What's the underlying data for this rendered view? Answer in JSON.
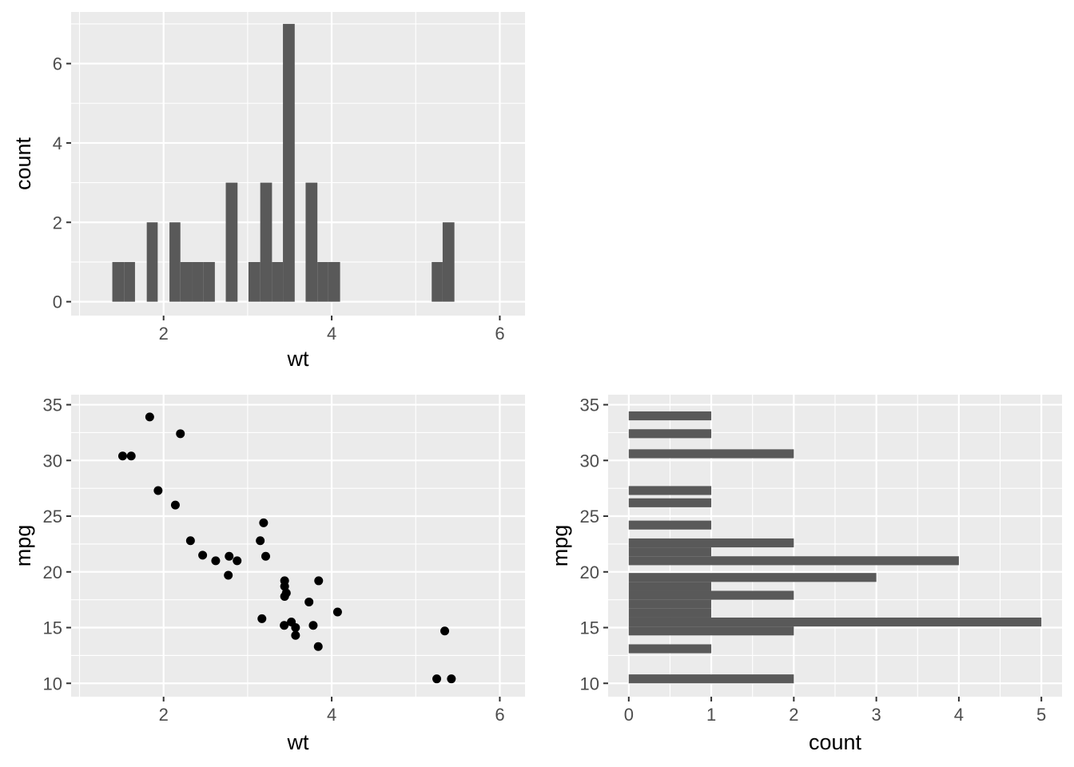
{
  "chart_data": [
    {
      "id": "hist_wt",
      "type": "bar",
      "title": "",
      "xlabel": "wt",
      "ylabel": "count",
      "xlim": [
        0.9,
        6.3
      ],
      "ylim": [
        -0.35,
        7.3
      ],
      "x_ticks": [
        2,
        4,
        6
      ],
      "y_ticks": [
        0,
        2,
        4,
        6
      ],
      "grid": true,
      "bins": [
        {
          "x0": 1.39,
          "x1": 1.53,
          "count": 1
        },
        {
          "x0": 1.53,
          "x1": 1.66,
          "count": 1
        },
        {
          "x0": 1.8,
          "x1": 1.93,
          "count": 2
        },
        {
          "x0": 2.07,
          "x1": 2.2,
          "count": 2
        },
        {
          "x0": 2.2,
          "x1": 2.34,
          "count": 1
        },
        {
          "x0": 2.34,
          "x1": 2.47,
          "count": 1
        },
        {
          "x0": 2.47,
          "x1": 2.61,
          "count": 1
        },
        {
          "x0": 2.74,
          "x1": 2.88,
          "count": 3
        },
        {
          "x0": 3.01,
          "x1": 3.15,
          "count": 1
        },
        {
          "x0": 3.15,
          "x1": 3.29,
          "count": 3
        },
        {
          "x0": 3.29,
          "x1": 3.42,
          "count": 1
        },
        {
          "x0": 3.42,
          "x1": 3.56,
          "count": 7
        },
        {
          "x0": 3.69,
          "x1": 3.83,
          "count": 3
        },
        {
          "x0": 3.83,
          "x1": 3.96,
          "count": 1
        },
        {
          "x0": 3.96,
          "x1": 4.1,
          "count": 1
        },
        {
          "x0": 5.19,
          "x1": 5.32,
          "count": 1
        },
        {
          "x0": 5.32,
          "x1": 5.46,
          "count": 2
        }
      ]
    },
    {
      "id": "scatter_wt_mpg",
      "type": "scatter",
      "title": "",
      "xlabel": "wt",
      "ylabel": "mpg",
      "xlim": [
        0.9,
        6.3
      ],
      "ylim": [
        8.8,
        35.9
      ],
      "x_ticks": [
        2,
        4,
        6
      ],
      "y_ticks": [
        10,
        15,
        20,
        25,
        30,
        35
      ],
      "grid": true,
      "points": [
        [
          2.62,
          21.0
        ],
        [
          2.875,
          21.0
        ],
        [
          2.32,
          22.8
        ],
        [
          3.215,
          21.4
        ],
        [
          3.44,
          18.7
        ],
        [
          3.46,
          18.1
        ],
        [
          3.57,
          14.3
        ],
        [
          3.19,
          24.4
        ],
        [
          3.15,
          22.8
        ],
        [
          3.44,
          19.2
        ],
        [
          3.44,
          17.8
        ],
        [
          4.07,
          16.4
        ],
        [
          3.73,
          17.3
        ],
        [
          3.78,
          15.2
        ],
        [
          5.25,
          10.4
        ],
        [
          5.424,
          10.4
        ],
        [
          5.345,
          14.7
        ],
        [
          2.2,
          32.4
        ],
        [
          1.615,
          30.4
        ],
        [
          1.835,
          33.9
        ],
        [
          2.465,
          21.5
        ],
        [
          3.52,
          15.5
        ],
        [
          3.435,
          15.2
        ],
        [
          3.84,
          13.3
        ],
        [
          3.845,
          19.2
        ],
        [
          1.935,
          27.3
        ],
        [
          2.14,
          26.0
        ],
        [
          1.513,
          30.4
        ],
        [
          3.17,
          15.8
        ],
        [
          2.77,
          19.7
        ],
        [
          3.57,
          15.0
        ],
        [
          2.78,
          21.4
        ]
      ]
    },
    {
      "id": "hist_mpg",
      "type": "bar",
      "orientation": "horizontal",
      "title": "",
      "xlabel": "count",
      "ylabel": "mpg",
      "xlim": [
        -0.25,
        5.25
      ],
      "ylim": [
        8.8,
        35.9
      ],
      "x_ticks": [
        0,
        1,
        2,
        3,
        4,
        5
      ],
      "y_ticks": [
        10,
        15,
        20,
        25,
        30,
        35
      ],
      "grid": true,
      "bins": [
        {
          "y0": 10.0,
          "y1": 10.8,
          "count": 2
        },
        {
          "y0": 12.7,
          "y1": 13.5,
          "count": 1
        },
        {
          "y0": 14.3,
          "y1": 15.1,
          "count": 2
        },
        {
          "y0": 15.1,
          "y1": 15.9,
          "count": 5
        },
        {
          "y0": 15.9,
          "y1": 16.7,
          "count": 1
        },
        {
          "y0": 16.7,
          "y1": 17.5,
          "count": 1
        },
        {
          "y0": 17.5,
          "y1": 18.3,
          "count": 2
        },
        {
          "y0": 18.3,
          "y1": 19.1,
          "count": 1
        },
        {
          "y0": 19.1,
          "y1": 19.9,
          "count": 3
        },
        {
          "y0": 20.6,
          "y1": 21.4,
          "count": 4
        },
        {
          "y0": 21.4,
          "y1": 22.2,
          "count": 1
        },
        {
          "y0": 22.2,
          "y1": 23.0,
          "count": 2
        },
        {
          "y0": 23.8,
          "y1": 24.6,
          "count": 1
        },
        {
          "y0": 25.8,
          "y1": 26.6,
          "count": 1
        },
        {
          "y0": 26.9,
          "y1": 27.7,
          "count": 1
        },
        {
          "y0": 30.2,
          "y1": 31.0,
          "count": 2
        },
        {
          "y0": 32.0,
          "y1": 32.8,
          "count": 1
        },
        {
          "y0": 33.6,
          "y1": 34.4,
          "count": 1
        }
      ]
    }
  ]
}
